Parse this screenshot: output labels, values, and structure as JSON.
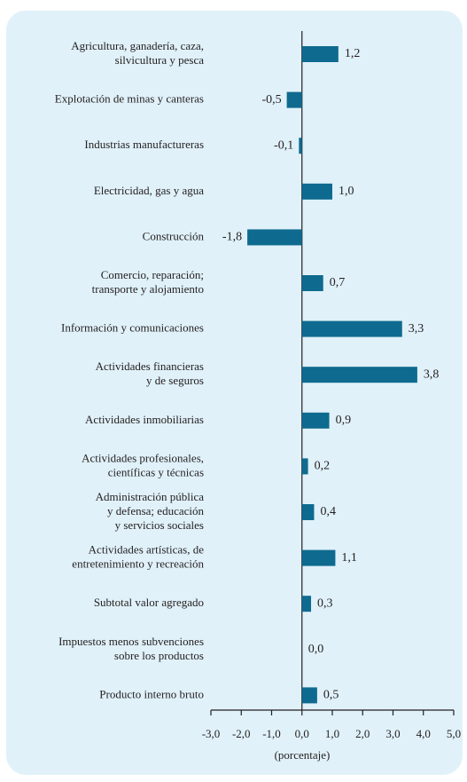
{
  "chart_data": {
    "type": "bar",
    "orientation": "horizontal",
    "categories": [
      [
        "Agricultura, ganadería, caza,",
        "silvicultura y pesca"
      ],
      [
        "Explotación de minas y canteras"
      ],
      [
        "Industrias manufactureras"
      ],
      [
        "Electricidad, gas y agua"
      ],
      [
        "Construcción"
      ],
      [
        "Comercio, reparación;",
        "transporte y alojamiento"
      ],
      [
        "Información y comunicaciones"
      ],
      [
        "Actividades financieras",
        "y de seguros"
      ],
      [
        "Actividades inmobiliarias"
      ],
      [
        "Actividades profesionales,",
        "científicas y técnicas"
      ],
      [
        "Administración pública",
        "y defensa; educación",
        "y servicios sociales"
      ],
      [
        "Actividades artísticas, de",
        "entretenimiento y recreación"
      ],
      [
        "Subtotal valor agregado"
      ],
      [
        "Impuestos menos subvenciones",
        "sobre los productos"
      ],
      [
        "Producto interno bruto"
      ]
    ],
    "values": [
      1.2,
      -0.5,
      -0.1,
      1.0,
      -1.8,
      0.7,
      3.3,
      3.8,
      0.9,
      0.2,
      0.4,
      1.1,
      0.3,
      0.0,
      0.5
    ],
    "value_labels": [
      "1,2",
      "-0,5",
      "-0,1",
      "1,0",
      "-1,8",
      "0,7",
      "3,3",
      "3,8",
      "0,9",
      "0,2",
      "0,4",
      "1,1",
      "0,3",
      "0,0",
      "0,5"
    ],
    "color": "#0f6a8f",
    "xlim": [
      -3,
      5
    ],
    "xticks": [
      {
        "value": -3,
        "label": "-3,0"
      },
      {
        "value": -2,
        "label": "-2,0"
      },
      {
        "value": -1,
        "label": "-1,0"
      },
      {
        "value": 0,
        "label": "0,0"
      },
      {
        "value": 1,
        "label": "1,0"
      },
      {
        "value": 2,
        "label": "2,0"
      },
      {
        "value": 3,
        "label": "3,0"
      },
      {
        "value": 4,
        "label": "4,0"
      },
      {
        "value": 5,
        "label": "5,0"
      }
    ],
    "xlabel": "(porcentaje)"
  }
}
